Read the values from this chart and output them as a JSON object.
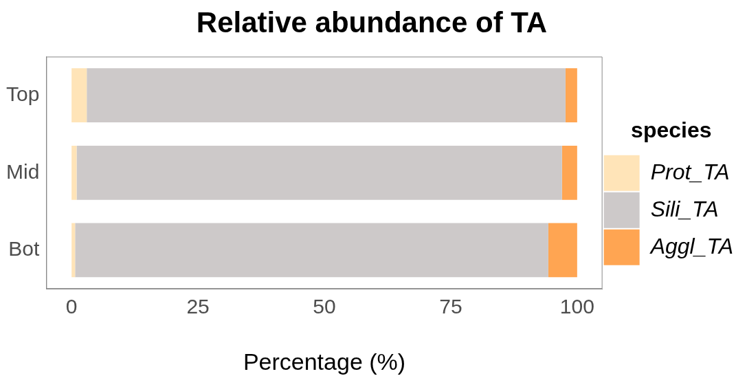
{
  "chart_data": {
    "type": "bar",
    "title": "Relative abundance of TA",
    "xlabel": "Percentage (%)",
    "legend_title": "species",
    "orientation": "horizontal",
    "stacked": true,
    "categories": [
      "Top",
      "Mid",
      "Bot"
    ],
    "series": [
      {
        "name": "Prot_TA",
        "color": "#ffe4b8",
        "values": [
          3.0,
          1.0,
          0.7
        ]
      },
      {
        "name": "Sili_TA",
        "color": "#cdc9c9",
        "values": [
          94.7,
          96.0,
          93.6
        ]
      },
      {
        "name": "Aggl_TA",
        "color": "#ffa552",
        "values": [
          2.3,
          3.0,
          5.7
        ]
      }
    ],
    "xlim": [
      -5,
      105
    ],
    "xticks": [
      0,
      25,
      50,
      75,
      100
    ],
    "grid": false,
    "legend": "right"
  }
}
